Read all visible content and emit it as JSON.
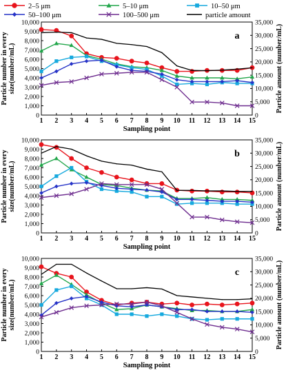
{
  "legend": {
    "items": [
      {
        "name": "2–5 μm",
        "color": "#e8141c",
        "marker": "circle"
      },
      {
        "name": "5–10 μm",
        "color": "#21a64a",
        "marker": "triangle"
      },
      {
        "name": "10–50 μm",
        "color": "#16a9de",
        "marker": "square"
      },
      {
        "name": "50–100 μm",
        "color": "#2633c7",
        "marker": "diamond"
      },
      {
        "name": "100–500 μm",
        "color": "#6e2d8f",
        "marker": "x"
      },
      {
        "name": "particle amount",
        "color": "#000000",
        "marker": "plus"
      }
    ]
  },
  "chart_data": [
    {
      "type": "line",
      "panel_label": "a",
      "xlabel": "Sampling point",
      "ylabel": "Particle number in every size(number/mL)",
      "y2label": "Particle amount (number/mL)",
      "x": [
        1,
        2,
        3,
        4,
        5,
        6,
        7,
        8,
        9,
        10,
        11,
        12,
        13,
        14,
        15
      ],
      "ylim": [
        0,
        10000
      ],
      "y2lim": [
        0,
        35000
      ],
      "series": [
        {
          "name": "2–5 μm",
          "values": [
            9200,
            9100,
            8500,
            6600,
            6200,
            6100,
            5800,
            5600,
            5100,
            4700,
            4700,
            4800,
            4800,
            4800,
            5100
          ]
        },
        {
          "name": "5–10 μm",
          "values": [
            6900,
            7700,
            7500,
            6400,
            6000,
            5500,
            5200,
            5100,
            4800,
            4200,
            4000,
            4000,
            4000,
            3900,
            4100
          ]
        },
        {
          "name": "10–50 μm",
          "values": [
            4700,
            5800,
            6200,
            6300,
            5800,
            5400,
            5100,
            4900,
            4200,
            3300,
            3400,
            3300,
            3500,
            3400,
            3400
          ]
        },
        {
          "name": "50–100 μm",
          "values": [
            4000,
            4700,
            5500,
            5800,
            5900,
            5200,
            4800,
            4700,
            4400,
            3800,
            3600,
            3600,
            3600,
            3700,
            3500
          ]
        },
        {
          "name": "100–500 μm",
          "values": [
            3200,
            3500,
            3600,
            4000,
            4400,
            4500,
            4600,
            4600,
            3800,
            3000,
            1400,
            1400,
            1300,
            1000,
            1000
          ]
        },
        {
          "name": "particle amount",
          "axis": "secondary",
          "values": [
            31000,
            31200,
            31000,
            29000,
            28500,
            27000,
            26500,
            25800,
            23500,
            18500,
            16800,
            16700,
            16900,
            17300,
            17800
          ]
        }
      ],
      "yticks": [
        0,
        1000,
        2000,
        3000,
        4000,
        5000,
        6000,
        7000,
        8000,
        9000,
        10000
      ],
      "y2ticks": [
        0,
        5000,
        10000,
        15000,
        20000,
        25000,
        30000,
        35000
      ]
    },
    {
      "type": "line",
      "panel_label": "b",
      "xlabel": "Sampling point",
      "ylabel": "Particle number in every size(number/mL)",
      "y2label": "Particle amount (number/mL)",
      "x": [
        1,
        2,
        3,
        4,
        5,
        6,
        7,
        8,
        9,
        10,
        11,
        12,
        13,
        14,
        15
      ],
      "ylim": [
        0,
        10000
      ],
      "y2lim": [
        0,
        35000
      ],
      "series": [
        {
          "name": "2–5 μm",
          "values": [
            9500,
            9200,
            8000,
            7000,
            6500,
            6000,
            5700,
            5300,
            5300,
            4600,
            4500,
            4500,
            4400,
            4400,
            4300
          ]
        },
        {
          "name": "5–10 μm",
          "values": [
            7300,
            8000,
            6800,
            6000,
            5200,
            5100,
            4800,
            4600,
            4500,
            3700,
            3700,
            3800,
            3600,
            3600,
            3500
          ]
        },
        {
          "name": "10–50 μm",
          "values": [
            5000,
            6100,
            7000,
            5500,
            4700,
            4500,
            4400,
            3900,
            3900,
            3100,
            3200,
            3200,
            3200,
            3100,
            3100
          ]
        },
        {
          "name": "50–100 μm",
          "values": [
            4300,
            5000,
            5300,
            5400,
            5100,
            4800,
            4700,
            4600,
            4400,
            3600,
            3600,
            3500,
            3400,
            3400,
            3300
          ]
        },
        {
          "name": "100–500 μm",
          "values": [
            3800,
            4000,
            4200,
            4700,
            5300,
            5200,
            5200,
            5200,
            4700,
            3200,
            1700,
            1700,
            1400,
            1200,
            1100
          ]
        },
        {
          "name": "particle amount",
          "axis": "secondary",
          "values": [
            30000,
            32500,
            31500,
            29000,
            27000,
            26000,
            25500,
            24000,
            23000,
            16000,
            16000,
            15800,
            15800,
            15600,
            15600
          ]
        }
      ],
      "yticks": [
        0,
        1000,
        2000,
        3000,
        4000,
        5000,
        6000,
        7000,
        8000,
        9000,
        10000
      ],
      "y2ticks": [
        0,
        5000,
        10000,
        15000,
        20000,
        25000,
        30000,
        35000
      ]
    },
    {
      "type": "line",
      "panel_label": "c",
      "xlabel": "Sampling point",
      "ylabel": "Particle number in every size(number/mL)",
      "y2label": "Particle amount (number/mL)",
      "x": [
        1,
        2,
        3,
        4,
        5,
        6,
        7,
        8,
        9,
        10,
        11,
        12,
        13,
        14,
        15
      ],
      "ylim": [
        0,
        10000
      ],
      "y2lim": [
        0,
        35000
      ],
      "series": [
        {
          "name": "2–5 μm",
          "values": [
            9100,
            8400,
            8000,
            6400,
            5500,
            5000,
            5200,
            5300,
            5100,
            5200,
            5000,
            5100,
            5000,
            5100,
            5200
          ]
        },
        {
          "name": "5–10 μm",
          "values": [
            7300,
            8200,
            7200,
            6100,
            5200,
            4500,
            4600,
            5000,
            4800,
            4600,
            4400,
            4400,
            4300,
            4300,
            4500
          ]
        },
        {
          "name": "10–50 μm",
          "values": [
            5000,
            6600,
            7000,
            5700,
            5000,
            4000,
            4000,
            3800,
            4000,
            3800,
            3500,
            3400,
            3500,
            3500,
            3500
          ]
        },
        {
          "name": "50–100 μm",
          "values": [
            3900,
            5200,
            5700,
            5900,
            5300,
            4900,
            4800,
            5000,
            4800,
            4500,
            4500,
            4300,
            4300,
            4300,
            4200
          ]
        },
        {
          "name": "100–500 μm",
          "values": [
            3700,
            4200,
            4700,
            4900,
            5000,
            5100,
            5100,
            5300,
            4900,
            4200,
            3500,
            2900,
            2600,
            2400,
            2100
          ]
        },
        {
          "name": "particle amount",
          "axis": "secondary",
          "values": [
            29000,
            32800,
            32800,
            29500,
            26500,
            23600,
            23600,
            24000,
            23500,
            21000,
            20500,
            20000,
            19500,
            19500,
            19800
          ]
        }
      ],
      "yticks": [
        0,
        1000,
        2000,
        3000,
        4000,
        5000,
        6000,
        7000,
        8000,
        9000,
        10000
      ],
      "y2ticks": [
        0,
        5000,
        10000,
        15000,
        20000,
        25000,
        30000,
        35000
      ]
    }
  ]
}
